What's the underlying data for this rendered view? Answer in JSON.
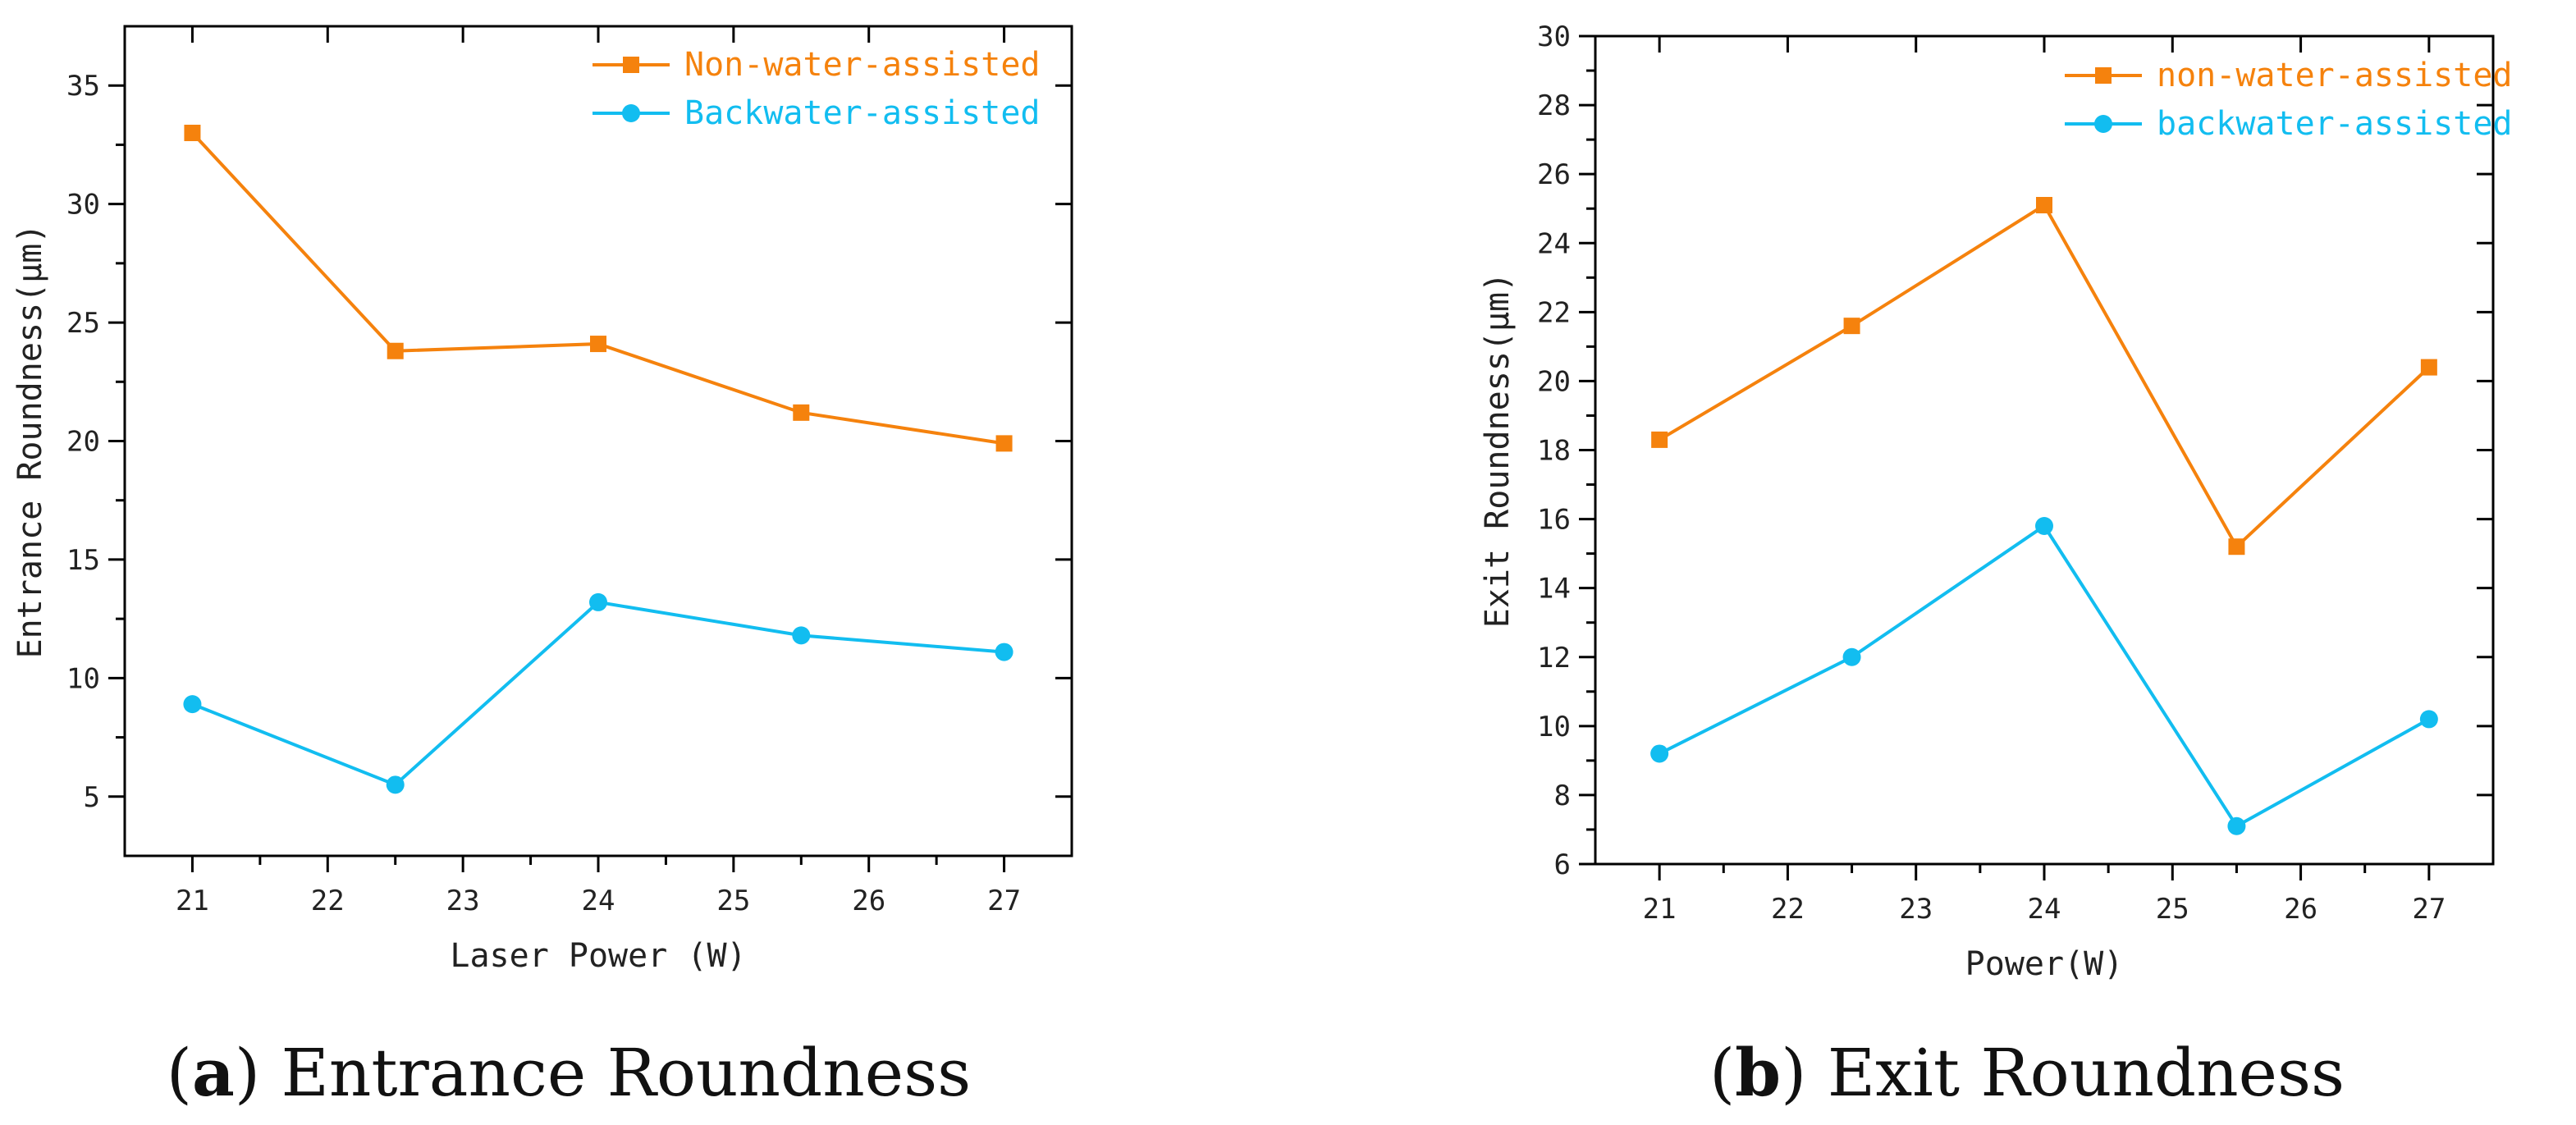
{
  "chart_data": [
    {
      "type": "line",
      "title": "",
      "xlabel": "Laser Power (W)",
      "ylabel": "Entrance Roundness(μm)",
      "xlim": [
        20.5,
        27.5
      ],
      "ylim": [
        2.5,
        37.5
      ],
      "xticks": [
        21,
        22,
        23,
        24,
        25,
        26,
        27
      ],
      "yticks": [
        5,
        10,
        15,
        20,
        25,
        30,
        35
      ],
      "xtick_labels": [
        "21",
        "22",
        "23",
        "24",
        "25",
        "26",
        "27"
      ],
      "ytick_labels": [
        "5",
        "10",
        "15",
        "20",
        "25",
        "30",
        "35"
      ],
      "legend": "top-right",
      "grid": false,
      "series": [
        {
          "name": "Non-water-assisted",
          "marker": "square",
          "color": "#f5820d",
          "x": [
            21,
            22.5,
            24,
            25.5,
            27
          ],
          "values": [
            33.0,
            23.8,
            24.1,
            21.2,
            19.9
          ]
        },
        {
          "name": "Backwater-assisted",
          "marker": "circle",
          "color": "#12bdf0",
          "x": [
            21,
            22.5,
            24,
            25.5,
            27
          ],
          "values": [
            8.9,
            5.5,
            13.2,
            11.8,
            11.1
          ]
        }
      ],
      "caption": {
        "letter": "a",
        "text": " Entrance Roundness"
      }
    },
    {
      "type": "line",
      "title": "",
      "xlabel": "Power(W)",
      "ylabel": "Exit Roundness(μm)",
      "xlim": [
        20.5,
        27.5
      ],
      "ylim": [
        6,
        30
      ],
      "xticks": [
        21,
        22,
        23,
        24,
        25,
        26,
        27
      ],
      "yticks": [
        6,
        8,
        10,
        12,
        14,
        16,
        18,
        20,
        22,
        24,
        26,
        28,
        30
      ],
      "xtick_labels": [
        "21",
        "22",
        "23",
        "24",
        "25",
        "26",
        "27"
      ],
      "ytick_labels": [
        "6",
        "8",
        "10",
        "12",
        "14",
        "16",
        "18",
        "20",
        "22",
        "24",
        "26",
        "28",
        "30"
      ],
      "legend": "top-right",
      "grid": false,
      "series": [
        {
          "name": "non-water-assisted",
          "marker": "square",
          "color": "#f5820d",
          "x": [
            21,
            22.5,
            24,
            25.5,
            27
          ],
          "values": [
            18.3,
            21.6,
            25.1,
            15.2,
            20.4
          ]
        },
        {
          "name": "backwater-assisted",
          "marker": "circle",
          "color": "#12bdf0",
          "x": [
            21,
            22.5,
            24,
            25.5,
            27
          ],
          "values": [
            9.2,
            12.0,
            15.8,
            7.1,
            10.2
          ]
        }
      ],
      "caption": {
        "letter": "b",
        "text": " Exit Roundness"
      }
    }
  ]
}
